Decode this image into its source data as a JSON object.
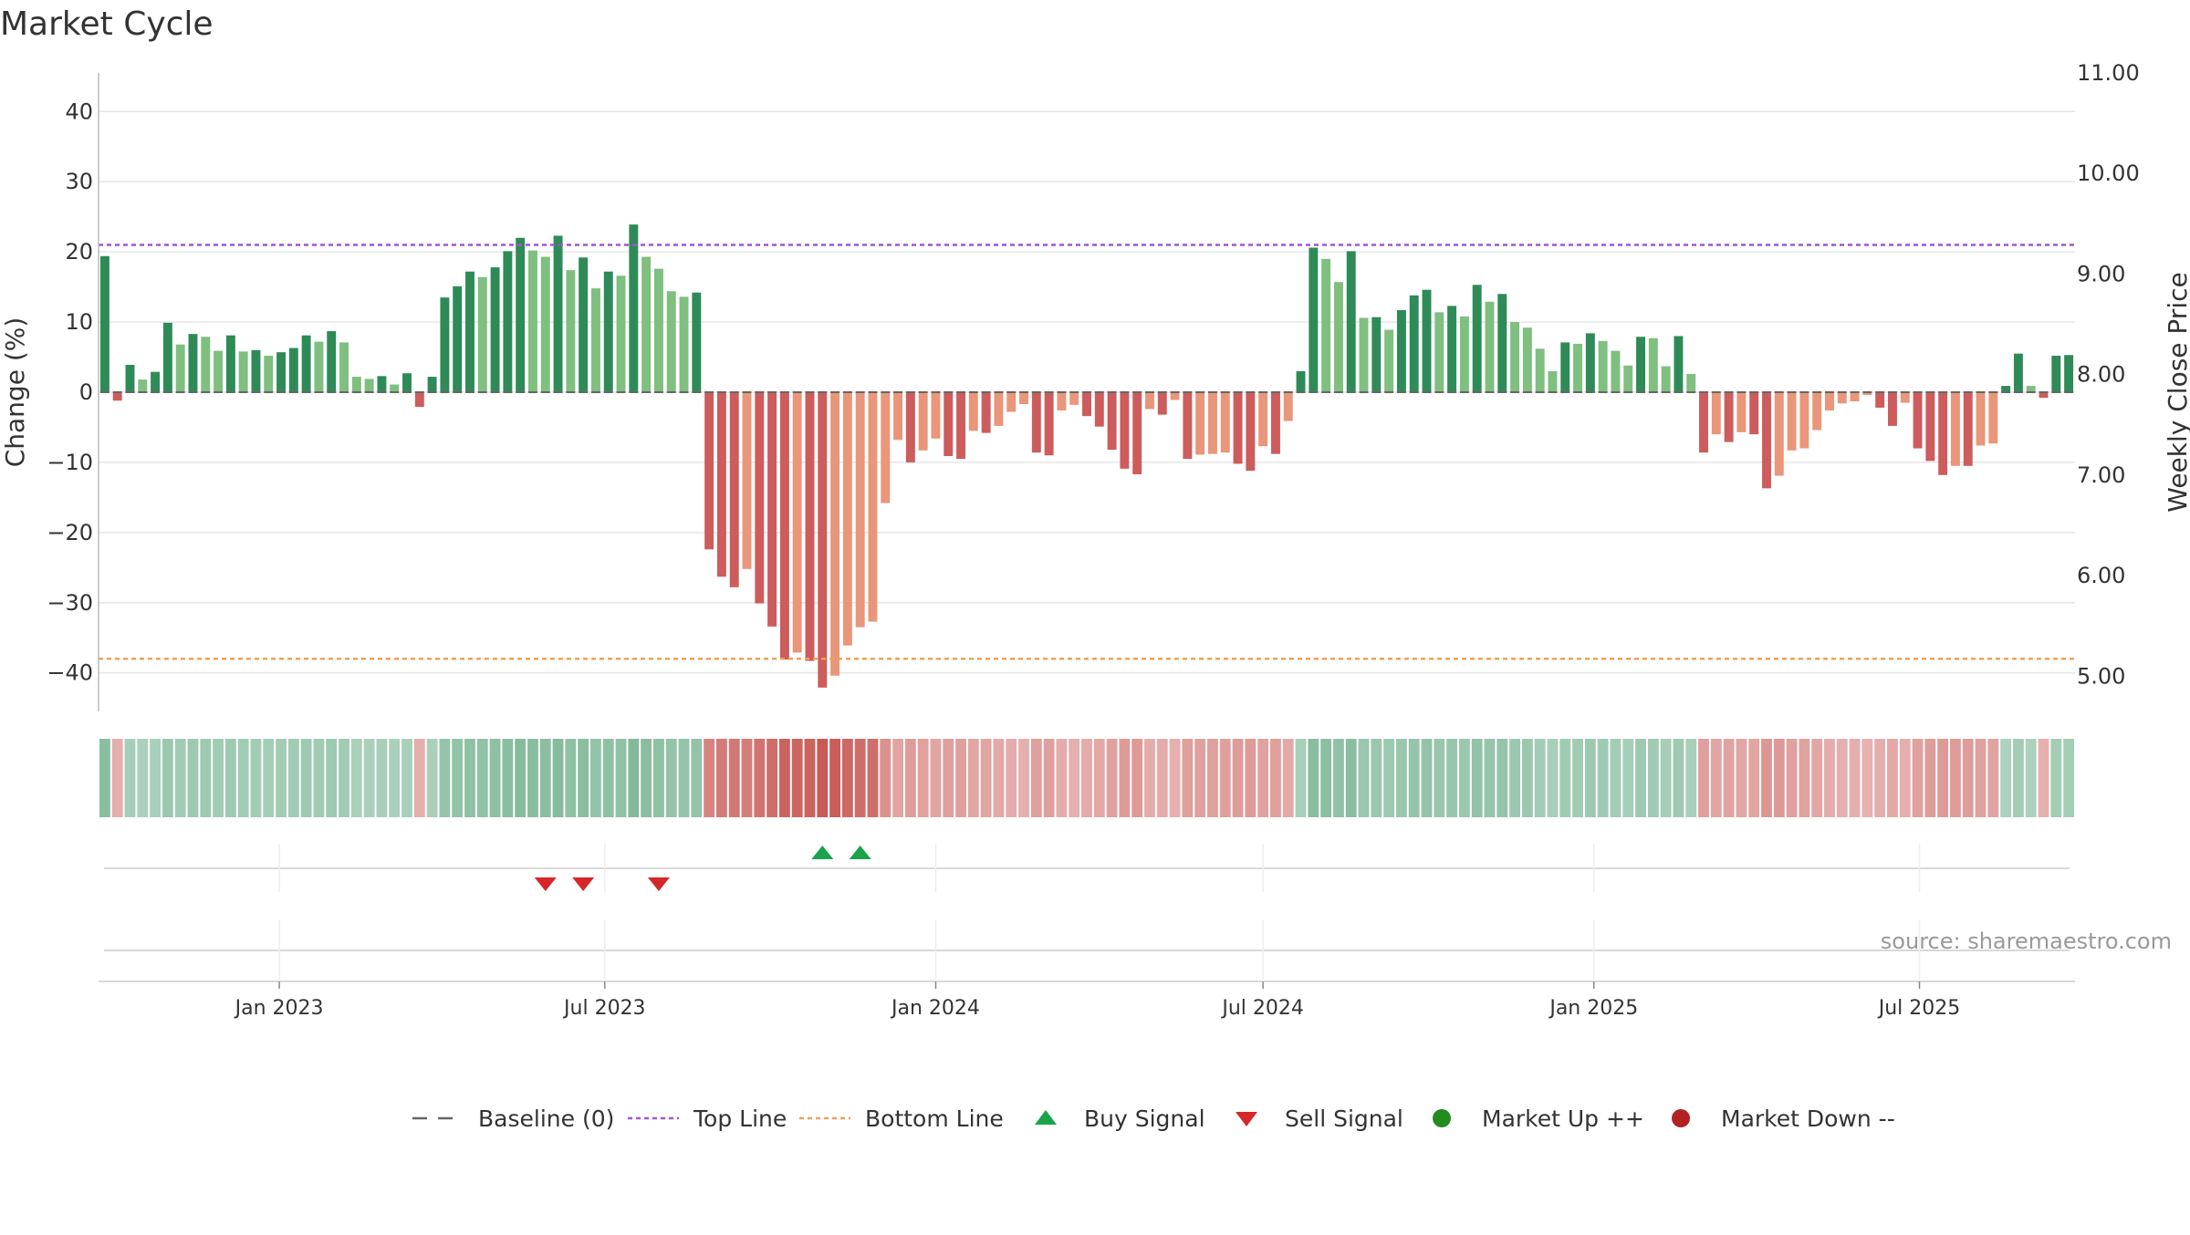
{
  "chart_data": {
    "type": "bar",
    "title": "Market Cycle",
    "ylabel_left": "Change (%)",
    "ylabel_right": "Weekly Close Price",
    "source": "source: sharemaestro.com",
    "left_axis": {
      "ylim": [
        -45.5,
        45.5
      ],
      "ticks": [
        40,
        30,
        20,
        10,
        0,
        -10,
        -20,
        -30,
        -40
      ],
      "tick_labels": [
        "40",
        "30",
        "20",
        "10",
        "0",
        "−10",
        "−20",
        "−30",
        "−40"
      ]
    },
    "right_axis": {
      "ylim": [
        4.65,
        11.0
      ],
      "ticks": [
        11,
        10,
        9,
        8,
        7,
        6,
        5
      ],
      "tick_labels": [
        "11.00",
        "10.00",
        "9.00",
        "8.00",
        "7.00",
        "6.00",
        "5.00"
      ]
    },
    "top_line": 21,
    "bottom_line": -38,
    "start_date": "2022-09-26",
    "week_step": 1,
    "x_ticks": [
      {
        "label": "Jan 2023",
        "date": "2023-01-01"
      },
      {
        "label": "Jul 2023",
        "date": "2023-07-01"
      },
      {
        "label": "Jan 2024",
        "date": "2024-01-01"
      },
      {
        "label": "Jul 2024",
        "date": "2024-07-01"
      },
      {
        "label": "Jan 2025",
        "date": "2025-01-01"
      },
      {
        "label": "Jul 2025",
        "date": "2025-07-01"
      }
    ],
    "values": [
      19.4,
      -1.2,
      3.9,
      1.8,
      2.9,
      9.9,
      6.8,
      8.3,
      7.9,
      5.9,
      8.1,
      5.8,
      6.0,
      5.2,
      5.7,
      6.3,
      8.1,
      7.2,
      8.7,
      7.1,
      2.2,
      1.9,
      2.3,
      1.1,
      2.7,
      -2.1,
      2.2,
      13.5,
      15.1,
      17.2,
      16.4,
      17.8,
      20.1,
      22.0,
      20.2,
      19.3,
      22.3,
      17.4,
      19.2,
      14.8,
      17.2,
      16.6,
      23.9,
      19.3,
      17.6,
      14.4,
      13.6,
      14.2,
      -22.4,
      -26.3,
      -27.8,
      -25.2,
      -30.1,
      -33.4,
      -38.1,
      -37.1,
      -38.3,
      -42.1,
      -40.4,
      -36.1,
      -33.5,
      -32.7,
      -15.8,
      -6.8,
      -10.0,
      -8.3,
      -6.6,
      -9.1,
      -9.5,
      -5.5,
      -5.8,
      -4.8,
      -2.8,
      -1.7,
      -8.6,
      -9.0,
      -2.6,
      -1.8,
      -3.4,
      -4.9,
      -8.2,
      -10.9,
      -11.7,
      -2.4,
      -3.2,
      -1.1,
      -9.5,
      -8.9,
      -8.8,
      -8.6,
      -10.2,
      -11.2,
      -7.7,
      -8.8,
      -4.1,
      3.0,
      20.6,
      19.0,
      15.7,
      20.1,
      10.6,
      10.7,
      8.9,
      11.7,
      13.8,
      14.6,
      11.4,
      12.3,
      10.8,
      15.3,
      12.9,
      14.0,
      10.0,
      9.2,
      6.2,
      3.0,
      7.1,
      6.9,
      8.4,
      7.3,
      5.9,
      3.8,
      7.9,
      7.7,
      3.7,
      8.0,
      2.6,
      -8.6,
      -6.0,
      -7.1,
      -5.7,
      -6.0,
      -13.7,
      -11.9,
      -8.3,
      -8.0,
      -5.4,
      -2.6,
      -1.6,
      -1.3,
      -0.4,
      -2.2,
      -4.8,
      -1.5,
      -8.0,
      -9.8,
      -11.8,
      -10.5,
      -10.5,
      -7.6,
      -7.3,
      0.9,
      5.5,
      0.9,
      -0.8,
      5.2,
      5.3
    ],
    "buy_signals": [
      {
        "week": 57
      },
      {
        "week": 60
      }
    ],
    "sell_signals": [
      {
        "week": 35
      },
      {
        "week": 38
      },
      {
        "week": 44
      }
    ]
  },
  "colors": {
    "green_strong": "#2e8b57",
    "green_light": "#7fbf7f",
    "red_strong": "#cd5c5c",
    "red_light": "#e9967a",
    "top_line": "#9f56d6",
    "bottom_line": "#f0a05a",
    "buy": "#1aa34a",
    "sell": "#d62728"
  },
  "legend": [
    {
      "label": "Baseline (0)",
      "icon": "dash-line"
    },
    {
      "label": "Top Line",
      "icon": "dotted-line-purple"
    },
    {
      "label": "Bottom Line",
      "icon": "dotted-line-orange"
    },
    {
      "label": "Buy Signal",
      "icon": "triangle-up-green"
    },
    {
      "label": "Sell Signal",
      "icon": "triangle-down-red"
    },
    {
      "label": "Market Up ++",
      "icon": "circle-green"
    },
    {
      "label": "Market Down --",
      "icon": "circle-red"
    }
  ]
}
